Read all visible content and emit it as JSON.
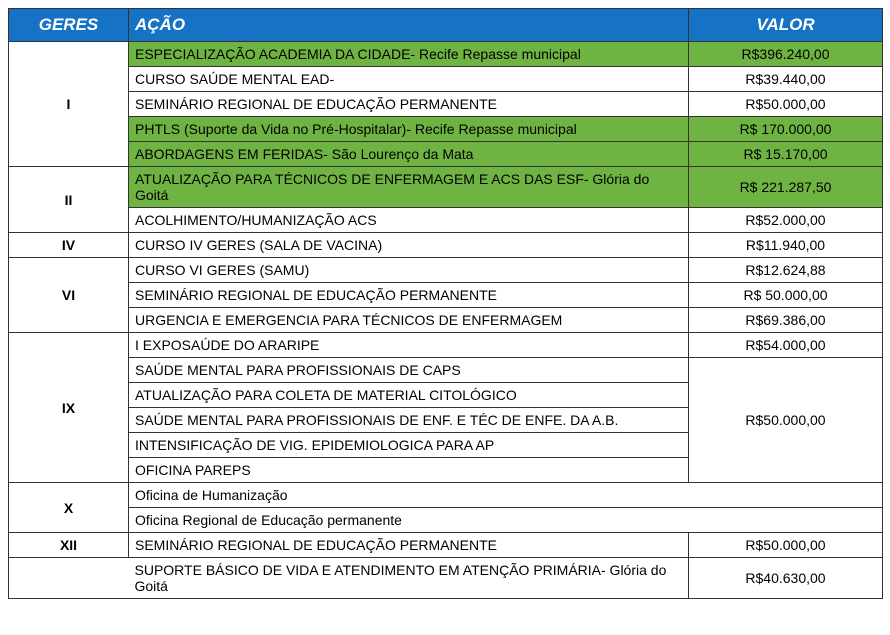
{
  "type": "table",
  "colors": {
    "header_bg": "#1672c4",
    "header_text": "#ffffff",
    "highlight_bg": "#6fb442",
    "border": "#333333",
    "bg": "#ffffff"
  },
  "columns": [
    "GERES",
    "AÇÃO",
    "VALOR"
  ],
  "rows": [
    {
      "geres": "I",
      "geres_rowspan": 5,
      "acao": "ESPECIALIZAÇÃO ACADEMIA DA CIDADE- Recife Repasse municipal",
      "valor": "R$396.240,00",
      "highlight": true
    },
    {
      "acao": "CURSO SAÚDE MENTAL EAD-",
      "valor": "R$39.440,00"
    },
    {
      "acao": "SEMINÁRIO REGIONAL DE EDUCAÇÃO PERMANENTE",
      "valor": "R$50.000,00"
    },
    {
      "acao": "PHTLS (Suporte da Vida no Pré-Hospitalar)- Recife Repasse municipal",
      "valor": "R$ 170.000,00",
      "highlight": true
    },
    {
      "acao": "ABORDAGENS EM FERIDAS- São Lourenço da Mata",
      "valor": "R$ 15.170,00",
      "highlight": true
    },
    {
      "geres": "II",
      "geres_rowspan": 2,
      "acao": "ATUALIZAÇÃO PARA TÉCNICOS DE ENFERMAGEM E ACS DAS ESF- Glória do Goitá",
      "valor": "R$ 221.287,50",
      "highlight": true
    },
    {
      "acao": "ACOLHIMENTO/HUMANIZAÇÃO ACS",
      "valor": "R$52.000,00"
    },
    {
      "geres": "IV",
      "geres_rowspan": 1,
      "acao": "CURSO IV GERES (SALA DE VACINA)",
      "valor": "R$11.940,00"
    },
    {
      "geres": "VI",
      "geres_rowspan": 3,
      "acao": "CURSO VI GERES (SAMU)",
      "valor": "R$12.624,88"
    },
    {
      "acao": "SEMINÁRIO REGIONAL DE EDUCAÇÃO PERMANENTE",
      "valor": "R$ 50.000,00"
    },
    {
      "acao": "URGENCIA E EMERGENCIA PARA TÉCNICOS DE ENFERMAGEM",
      "valor": "R$69.386,00"
    },
    {
      "geres": "IX",
      "geres_rowspan": 6,
      "acao": "I EXPOSAÚDE DO ARARIPE",
      "valor": "R$54.000,00"
    },
    {
      "acao": "SAÚDE MENTAL PARA PROFISSIONAIS DE CAPS",
      "valor_rowspan": 5,
      "valor": "R$50.000,00"
    },
    {
      "acao": "ATUALIZAÇÃO PARA COLETA DE MATERIAL CITOLÓGICO"
    },
    {
      "acao": "SAÚDE MENTAL PARA PROFISSIONAIS DE ENF. E TÉC DE ENFE. DA A.B."
    },
    {
      "acao": "INTENSIFICAÇÃO DE VIG. EPIDEMIOLOGICA  PARA AP"
    },
    {
      "acao": "OFICINA PAREPS"
    },
    {
      "geres": "X",
      "geres_rowspan": 2,
      "acao": "Oficina de Humanização",
      "valor": "",
      "valor_blank": true
    },
    {
      "acao": "Oficina Regional de Educação permanente",
      "valor": "",
      "valor_blank": true
    },
    {
      "geres": "XII",
      "geres_rowspan": 1,
      "acao": "SEMINÁRIO REGIONAL DE EDUCAÇÃO PERMANENTE",
      "valor": "R$50.000,00"
    },
    {
      "geres": "",
      "geres_rowspan": 1,
      "geres_blank": true,
      "acao": "SUPORTE BÁSICO DE VIDA E ATENDIMENTO EM ATENÇÃO PRIMÁRIA- Glória do Goitá",
      "valor": "R$40.630,00"
    }
  ]
}
